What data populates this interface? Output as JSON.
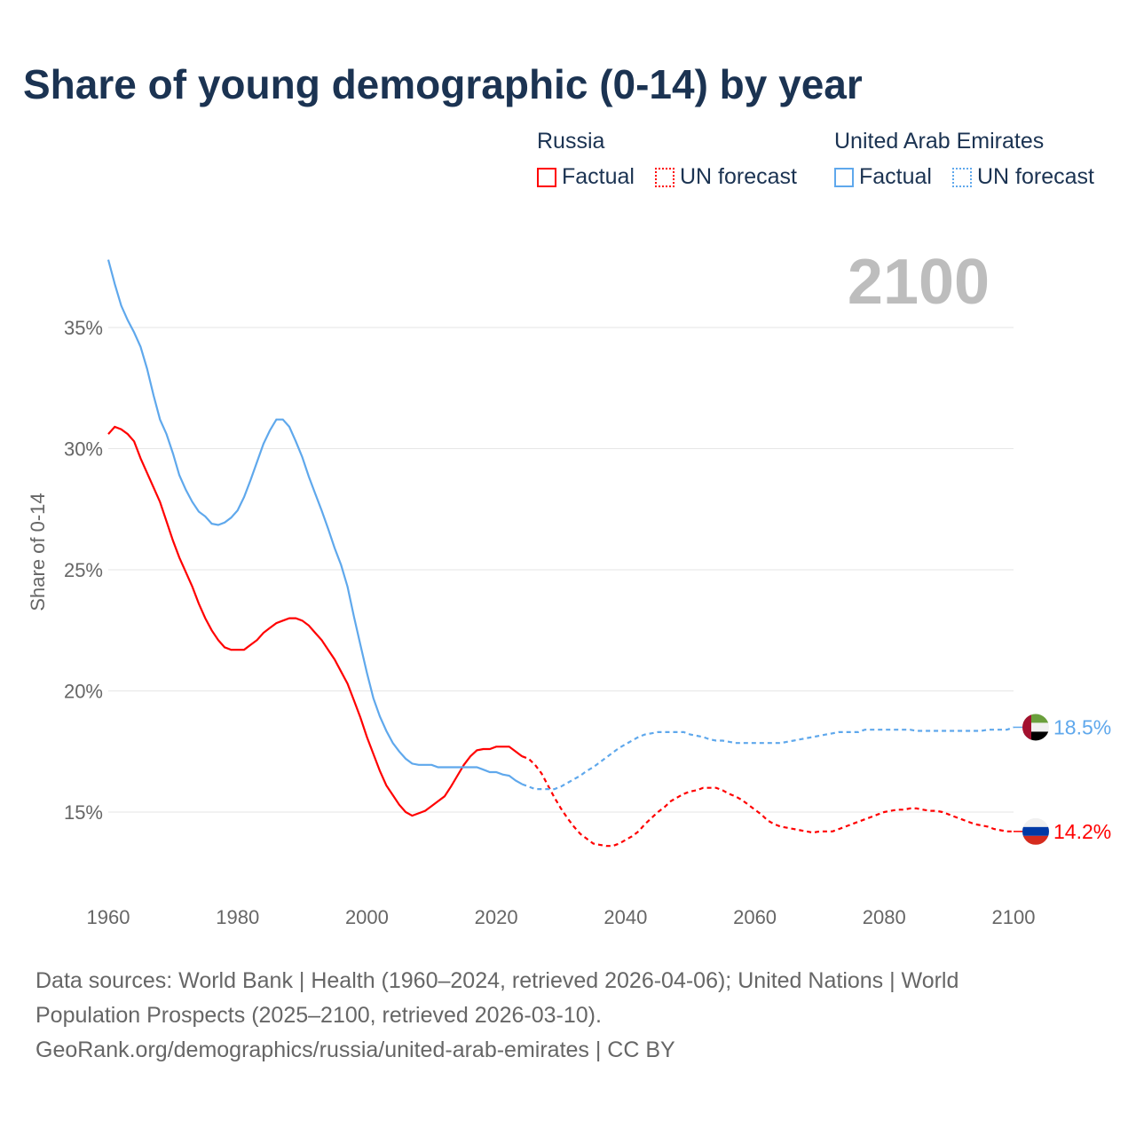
{
  "title": "Share of young demographic (0-14) by year",
  "legend": {
    "groups": [
      {
        "name": "Russia",
        "factual": "Factual",
        "forecast": "UN forecast",
        "color": "#ff0000"
      },
      {
        "name": "United Arab Emirates",
        "factual": "Factual",
        "forecast": "UN forecast",
        "color": "#5fa8ec"
      }
    ]
  },
  "footer": {
    "line1": "Data sources: World Bank | Health (1960–2024, retrieved 2026-04-06); United Nations | World Population Prospects (2025–2100, retrieved 2026-03-10).",
    "line2": "GeoRank.org/demographics/russia/united-arab-emirates | CC BY"
  },
  "chart_data": {
    "type": "line",
    "title": "Share of young demographic (0-14) by year",
    "ylabel": "Share of 0-14",
    "xlim": [
      1960,
      2100
    ],
    "ylim": [
      11.5,
      38.5
    ],
    "year_label": "2100",
    "xticks": [
      "1960",
      "1980",
      "2000",
      "2020",
      "2040",
      "2060",
      "2080",
      "2100"
    ],
    "yticks": [
      "15%",
      "20%",
      "25%",
      "30%",
      "35%"
    ],
    "start_year": 1960,
    "factual_end": 2024,
    "series": [
      {
        "name": "Russia",
        "color": "#ff0000",
        "end_label": "14.2%",
        "values": [
          30.6,
          30.9,
          30.8,
          30.6,
          30.3,
          29.6,
          29.0,
          28.4,
          27.8,
          27.0,
          26.2,
          25.5,
          24.9,
          24.3,
          23.6,
          23.0,
          22.5,
          22.1,
          21.8,
          21.7,
          21.7,
          21.7,
          21.9,
          22.1,
          22.4,
          22.6,
          22.8,
          22.9,
          23.0,
          23.0,
          22.9,
          22.7,
          22.4,
          22.1,
          21.7,
          21.3,
          20.8,
          20.3,
          19.6,
          18.9,
          18.1,
          17.4,
          16.7,
          16.1,
          15.7,
          15.3,
          15.0,
          14.85,
          14.95,
          15.05,
          15.25,
          15.45,
          15.65,
          16.05,
          16.5,
          16.95,
          17.3,
          17.55,
          17.6,
          17.6,
          17.7,
          17.7,
          17.7,
          17.5,
          17.3,
          17.2,
          16.95,
          16.6,
          16.1,
          15.6,
          15.15,
          14.75,
          14.4,
          14.1,
          13.9,
          13.7,
          13.65,
          13.6,
          13.6,
          13.7,
          13.85,
          14.0,
          14.2,
          14.5,
          14.75,
          15.0,
          15.2,
          15.45,
          15.6,
          15.75,
          15.85,
          15.9,
          16.0,
          16.0,
          16.0,
          15.9,
          15.75,
          15.65,
          15.5,
          15.3,
          15.1,
          14.9,
          14.65,
          14.5,
          14.4,
          14.35,
          14.3,
          14.25,
          14.2,
          14.15,
          14.2,
          14.2,
          14.2,
          14.3,
          14.4,
          14.5,
          14.6,
          14.7,
          14.8,
          14.9,
          15.0,
          15.05,
          15.1,
          15.1,
          15.15,
          15.15,
          15.1,
          15.05,
          15.05,
          15.0,
          14.9,
          14.8,
          14.7,
          14.6,
          14.5,
          14.45,
          14.4,
          14.3,
          14.25,
          14.2,
          14.2
        ]
      },
      {
        "name": "United Arab Emirates",
        "color": "#5fa8ec",
        "end_label": "18.5%",
        "values": [
          37.8,
          36.8,
          35.9,
          35.3,
          34.8,
          34.2,
          33.3,
          32.2,
          31.2,
          30.6,
          29.8,
          28.9,
          28.3,
          27.8,
          27.4,
          27.2,
          26.9,
          26.85,
          26.95,
          27.15,
          27.45,
          28.0,
          28.7,
          29.45,
          30.2,
          30.75,
          31.2,
          31.2,
          30.9,
          30.3,
          29.65,
          28.85,
          28.15,
          27.45,
          26.7,
          25.9,
          25.2,
          24.3,
          23.05,
          21.9,
          20.75,
          19.7,
          18.95,
          18.35,
          17.85,
          17.5,
          17.2,
          17.0,
          16.95,
          16.95,
          16.95,
          16.85,
          16.85,
          16.85,
          16.85,
          16.85,
          16.85,
          16.85,
          16.75,
          16.65,
          16.65,
          16.55,
          16.5,
          16.3,
          16.15,
          16.05,
          15.95,
          15.95,
          15.95,
          15.95,
          16.05,
          16.2,
          16.35,
          16.5,
          16.7,
          16.85,
          17.05,
          17.25,
          17.45,
          17.65,
          17.8,
          17.95,
          18.1,
          18.2,
          18.25,
          18.3,
          18.3,
          18.3,
          18.3,
          18.3,
          18.2,
          18.15,
          18.1,
          18.0,
          17.95,
          17.95,
          17.9,
          17.85,
          17.85,
          17.85,
          17.85,
          17.85,
          17.85,
          17.85,
          17.85,
          17.9,
          17.95,
          18.0,
          18.05,
          18.1,
          18.15,
          18.2,
          18.25,
          18.3,
          18.3,
          18.3,
          18.3,
          18.4,
          18.4,
          18.4,
          18.4,
          18.4,
          18.4,
          18.4,
          18.4,
          18.35,
          18.35,
          18.35,
          18.35,
          18.35,
          18.35,
          18.35,
          18.35,
          18.35,
          18.35,
          18.35,
          18.4,
          18.4,
          18.4,
          18.4,
          18.5
        ]
      }
    ]
  }
}
